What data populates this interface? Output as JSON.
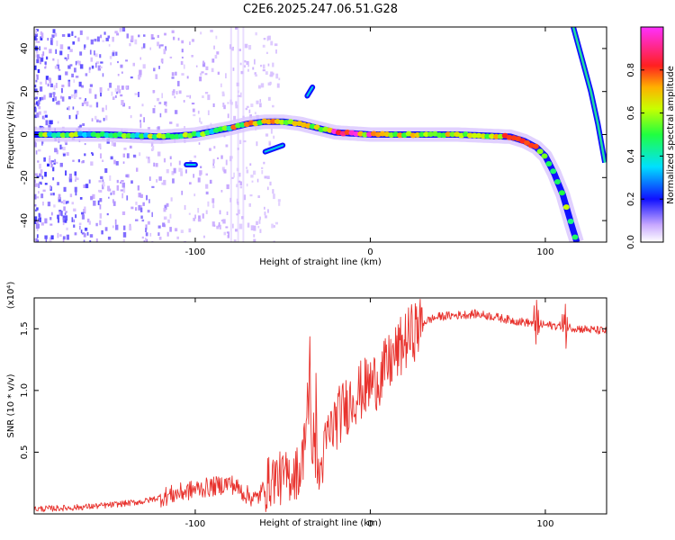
{
  "title": "C2E6.2025.247.06.51.G28",
  "chart_data": [
    {
      "type": "heatmap",
      "name": "spectrogram",
      "xlabel": "Height of straight line (km)",
      "ylabel": "Frequency (Hz)",
      "xlim": [
        -192,
        135
      ],
      "ylim": [
        -50,
        50
      ],
      "xticks": [
        {
          "value": -100,
          "label": "-100"
        },
        {
          "value": 0,
          "label": "0"
        },
        {
          "value": 100,
          "label": "100"
        }
      ],
      "yticks": [
        {
          "value": -40,
          "label": "-40"
        },
        {
          "value": -20,
          "label": "-20"
        },
        {
          "value": 0,
          "label": "0"
        },
        {
          "value": 20,
          "label": "20"
        },
        {
          "value": 40,
          "label": "40"
        }
      ],
      "colorbar": {
        "label": "Normalized spectral amplitude",
        "range": [
          0,
          1
        ],
        "ticks": [
          {
            "value": 0.0,
            "label": "0.0"
          },
          {
            "value": 0.2,
            "label": "0.2"
          },
          {
            "value": 0.4,
            "label": "0.4"
          },
          {
            "value": 0.6,
            "label": "0.6"
          },
          {
            "value": 0.8,
            "label": "0.8"
          }
        ]
      },
      "main_ridge": [
        [
          -190,
          0
        ],
        [
          -150,
          0
        ],
        [
          -120,
          -1
        ],
        [
          -100,
          0
        ],
        [
          -80,
          3
        ],
        [
          -70,
          5
        ],
        [
          -60,
          6
        ],
        [
          -50,
          6
        ],
        [
          -40,
          5
        ],
        [
          -30,
          3
        ],
        [
          -20,
          1
        ],
        [
          0,
          0
        ],
        [
          20,
          0
        ],
        [
          50,
          0
        ],
        [
          80,
          -1
        ],
        [
          88,
          -3
        ],
        [
          95,
          -6
        ],
        [
          100,
          -10
        ],
        [
          105,
          -18
        ],
        [
          110,
          -28
        ],
        [
          115,
          -42
        ],
        [
          118,
          -50
        ]
      ],
      "upper_branch": [
        [
          116,
          50
        ],
        [
          121,
          35
        ],
        [
          126,
          20
        ],
        [
          130,
          5
        ],
        [
          134,
          -13
        ]
      ],
      "side_features": [
        {
          "x": [
            -36,
            -33
          ],
          "y": [
            18,
            22
          ]
        },
        {
          "x": [
            -60,
            -50
          ],
          "y": [
            -8,
            -5
          ]
        },
        {
          "x": [
            -105,
            -100
          ],
          "y": [
            -14,
            -14
          ]
        }
      ]
    },
    {
      "type": "line",
      "name": "snr",
      "xlabel": "Height of straight line (km)",
      "ylabel": "SNR (10 * v/v)",
      "y_multiplier": "(x10⁴)",
      "xlim": [
        -192,
        135
      ],
      "ylim": [
        0,
        1.75
      ],
      "xticks": [
        {
          "value": -100,
          "label": "-100"
        },
        {
          "value": 0,
          "label": "0"
        },
        {
          "value": 100,
          "label": "100"
        }
      ],
      "yticks": [
        {
          "value": 0.5,
          "label": "0.5"
        },
        {
          "value": 1.0,
          "label": "1.0"
        },
        {
          "value": 1.5,
          "label": "1.5"
        }
      ],
      "series": [
        {
          "name": "SNR",
          "color": "#e8332e",
          "x": [
            -190,
            -170,
            -150,
            -130,
            -115,
            -100,
            -90,
            -80,
            -70,
            -65,
            -60,
            -55,
            -50,
            -45,
            -40,
            -37,
            -35,
            -33,
            -31,
            -29,
            -27,
            -25,
            -20,
            -15,
            -10,
            -5,
            0,
            5,
            10,
            15,
            20,
            25,
            30,
            35,
            40,
            50,
            60,
            70,
            80,
            90,
            100,
            110,
            115,
            120,
            135
          ],
          "y": [
            0.04,
            0.05,
            0.07,
            0.1,
            0.15,
            0.2,
            0.22,
            0.25,
            0.15,
            0.12,
            0.22,
            0.3,
            0.28,
            0.32,
            0.35,
            0.6,
            0.95,
            0.55,
            0.4,
            0.3,
            0.45,
            0.6,
            0.75,
            0.85,
            0.95,
            1.0,
            1.05,
            1.1,
            1.2,
            1.3,
            1.4,
            1.48,
            1.55,
            1.58,
            1.6,
            1.61,
            1.62,
            1.6,
            1.57,
            1.55,
            1.53,
            1.52,
            1.51,
            1.5,
            1.48
          ]
        }
      ]
    }
  ]
}
